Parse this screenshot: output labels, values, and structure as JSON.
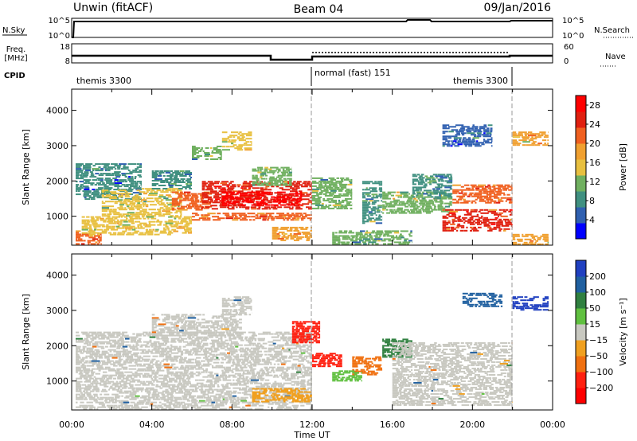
{
  "header": {
    "station": "Unwin (fitACF)",
    "beam": "Beam 04",
    "date": "09/Jan/2016"
  },
  "status_panels": {
    "nsky": {
      "label": "N.Sky",
      "ticks": [
        "10^5",
        "10^0"
      ]
    },
    "nsearch": {
      "label": "N.Search",
      "ticks": [
        "10^5",
        "10^0"
      ]
    },
    "freq": {
      "label_lines": [
        "Freq.",
        "[MHz]"
      ],
      "ticks": [
        "18",
        "8"
      ]
    },
    "nave": {
      "label": "Nave",
      "ticks": [
        "60",
        "0"
      ]
    },
    "cpid": {
      "label": "CPID",
      "segments": [
        {
          "name": "themis 3300",
          "start_h": 0,
          "end_h": 12
        },
        {
          "name": "normal (fast) 151",
          "start_h": 12,
          "end_h": 22
        },
        {
          "name": "themis 3300",
          "start_h": 22,
          "end_h": 24
        }
      ]
    }
  },
  "colors": {
    "power_scale": [
      "#0000ff",
      "#3060b0",
      "#409080",
      "#70b060",
      "#e8c040",
      "#f0a030",
      "#f06020",
      "#e02010",
      "#ff0000"
    ],
    "velocity_scale": [
      "#2040c0",
      "#2060a0",
      "#308040",
      "#60c040",
      "#c8c8c0",
      "#f0a020",
      "#f07010",
      "#ff2010",
      "#ff0000"
    ]
  },
  "chart_data": [
    {
      "type": "heatmap",
      "title": "",
      "xlabel": "",
      "ylabel": "Slant Range [km]",
      "xlim": [
        0,
        24
      ],
      "ylim": [
        180,
        4600
      ],
      "x_ticks": [
        "00:00",
        "04:00",
        "08:00",
        "12:00",
        "16:00",
        "20:00",
        "00:00"
      ],
      "y_ticks": [
        1000,
        2000,
        3000,
        4000
      ],
      "colorbar": {
        "label": "Power [dB]",
        "ticks": [
          4,
          8,
          12,
          16,
          20,
          24,
          28
        ],
        "range": [
          0,
          30
        ]
      },
      "regions": [
        {
          "t0": 0.2,
          "t1": 1.5,
          "r0": 200,
          "r1": 600,
          "v": 20
        },
        {
          "t0": 0.2,
          "t1": 3.5,
          "r0": 1500,
          "r1": 2500,
          "v": 7
        },
        {
          "t0": 1.5,
          "t1": 5.5,
          "r0": 1000,
          "r1": 1800,
          "v": 14
        },
        {
          "t0": 4,
          "t1": 6,
          "r0": 1800,
          "r1": 2300,
          "v": 8
        },
        {
          "t0": 5,
          "t1": 7,
          "r0": 1200,
          "r1": 1700,
          "v": 21
        },
        {
          "t0": 6.5,
          "t1": 12,
          "r0": 1200,
          "r1": 2000,
          "v": 26
        },
        {
          "t0": 7.5,
          "t1": 11.5,
          "r0": 1300,
          "r1": 1700,
          "v": 29
        },
        {
          "t0": 0.5,
          "t1": 6,
          "r0": 500,
          "r1": 1000,
          "v": 15
        },
        {
          "t0": 6,
          "t1": 12,
          "r0": 900,
          "r1": 1100,
          "v": 22
        },
        {
          "t0": 7.5,
          "t1": 9,
          "r0": 2900,
          "r1": 3400,
          "v": 14
        },
        {
          "t0": 6,
          "t1": 7.5,
          "r0": 2600,
          "r1": 3000,
          "v": 11
        },
        {
          "t0": 9,
          "t1": 11,
          "r0": 1900,
          "r1": 2400,
          "v": 12
        },
        {
          "t0": 10,
          "t1": 12,
          "r0": 300,
          "r1": 700,
          "v": 19
        },
        {
          "t0": 12,
          "t1": 14,
          "r0": 1200,
          "r1": 2100,
          "v": 11
        },
        {
          "t0": 14.5,
          "t1": 15.5,
          "r0": 800,
          "r1": 2000,
          "v": 9
        },
        {
          "t0": 15.5,
          "t1": 19,
          "r0": 1100,
          "r1": 1700,
          "v": 13
        },
        {
          "t0": 17,
          "t1": 19,
          "r0": 1500,
          "r1": 2200,
          "v": 8
        },
        {
          "t0": 18.5,
          "t1": 22,
          "r0": 600,
          "r1": 1200,
          "v": 24
        },
        {
          "t0": 19,
          "t1": 22,
          "r0": 1400,
          "r1": 1900,
          "v": 21
        },
        {
          "t0": 18.5,
          "t1": 21,
          "r0": 3000,
          "r1": 3600,
          "v": 6
        },
        {
          "t0": 22,
          "t1": 23.8,
          "r0": 3000,
          "r1": 3400,
          "v": 17
        },
        {
          "t0": 22,
          "t1": 23.8,
          "r0": 200,
          "r1": 500,
          "v": 18
        },
        {
          "t0": 13,
          "t1": 17,
          "r0": 200,
          "r1": 600,
          "v": 10
        }
      ]
    },
    {
      "type": "heatmap",
      "title": "",
      "xlabel": "Time UT",
      "ylabel": "Slant Range [km]",
      "xlim": [
        0,
        24
      ],
      "ylim": [
        180,
        4600
      ],
      "x_ticks": [
        "00:00",
        "04:00",
        "08:00",
        "12:00",
        "16:00",
        "20:00",
        "00:00"
      ],
      "y_ticks": [
        1000,
        2000,
        3000,
        4000
      ],
      "colorbar": {
        "label": "Velocity [m s⁻¹]",
        "ticks": [
          200,
          100,
          50,
          15,
          -15,
          -50,
          -100,
          -200
        ]
      },
      "regions": [
        {
          "t0": 0.2,
          "t1": 12,
          "r0": 200,
          "r1": 2400,
          "v": 0
        },
        {
          "t0": 4,
          "t1": 8.5,
          "r0": 2300,
          "r1": 2900,
          "v": 0
        },
        {
          "t0": 7.5,
          "t1": 9,
          "r0": 2900,
          "r1": 3400,
          "v": 0
        },
        {
          "t0": 12,
          "t1": 13.5,
          "r0": 1400,
          "r1": 1800,
          "v": -200
        },
        {
          "t0": 14,
          "t1": 15.5,
          "r0": 1200,
          "r1": 1700,
          "v": -120
        },
        {
          "t0": 9,
          "t1": 12,
          "r0": 400,
          "r1": 800,
          "v": -60
        },
        {
          "t0": 15.5,
          "t1": 17,
          "r0": 1700,
          "r1": 2200,
          "v": 70
        },
        {
          "t0": 13,
          "t1": 14.5,
          "r0": 1000,
          "r1": 1300,
          "v": 30
        },
        {
          "t0": 16,
          "t1": 22,
          "r0": 300,
          "r1": 2100,
          "v": 0
        },
        {
          "t0": 11,
          "t1": 12.4,
          "r0": 2100,
          "r1": 2700,
          "v": -200
        },
        {
          "t0": 22,
          "t1": 23.8,
          "r0": 3000,
          "r1": 3400,
          "v": 180
        },
        {
          "t0": 19.5,
          "t1": 21.5,
          "r0": 3100,
          "r1": 3500,
          "v": 150
        }
      ]
    }
  ]
}
